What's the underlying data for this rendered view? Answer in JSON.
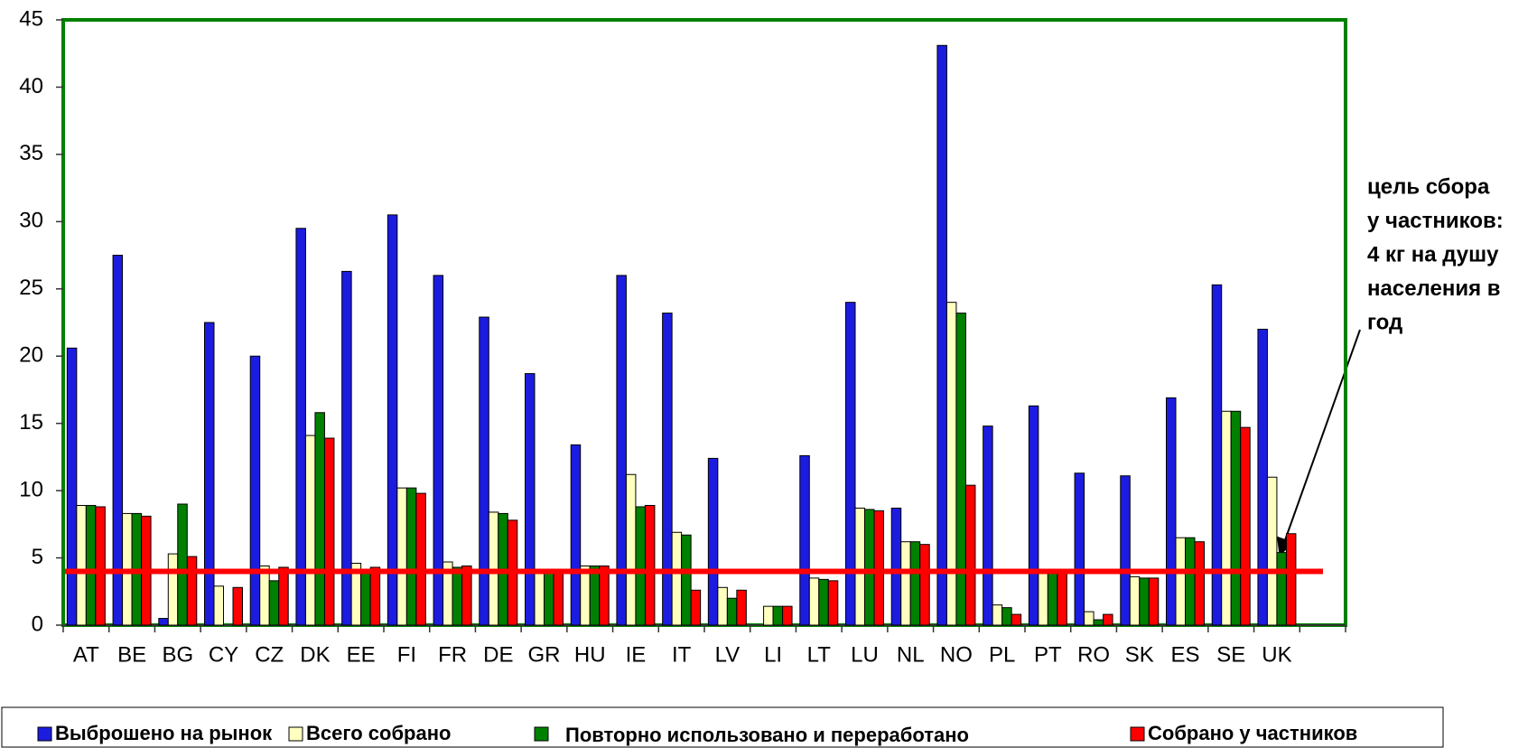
{
  "chart_data": {
    "type": "bar",
    "categories": [
      "AT",
      "BE",
      "BG",
      "CY",
      "CZ",
      "DK",
      "EE",
      "FI",
      "FR",
      "DE",
      "GR",
      "HU",
      "IE",
      "IT",
      "LV",
      "LI",
      "LT",
      "LU",
      "NL",
      "NO",
      "PL",
      "PT",
      "RO",
      "SK",
      "ES",
      "SE",
      "UK",
      null
    ],
    "series": [
      {
        "name": "Выброшено на рынок",
        "color": "#1c1ce0",
        "values": [
          20.6,
          27.5,
          0.5,
          22.5,
          20.0,
          29.5,
          26.3,
          30.5,
          26.0,
          22.9,
          18.7,
          13.4,
          26.0,
          23.2,
          12.4,
          0,
          12.6,
          24.0,
          8.7,
          43.1,
          14.8,
          16.3,
          11.3,
          11.1,
          16.9,
          25.3,
          22.0,
          null
        ]
      },
      {
        "name": "Всего собрано",
        "color": "#ffffc0",
        "values": [
          8.9,
          8.3,
          5.3,
          2.9,
          4.4,
          14.1,
          4.6,
          10.2,
          4.7,
          8.4,
          4.0,
          4.4,
          11.2,
          6.9,
          2.8,
          1.4,
          3.5,
          8.7,
          6.2,
          24.0,
          1.5,
          4.0,
          1.0,
          3.6,
          6.5,
          15.9,
          11.0,
          null
        ]
      },
      {
        "name": "Повторно использовано и переработано",
        "color": "#008000",
        "values": [
          8.9,
          8.3,
          9.0,
          0,
          3.3,
          15.8,
          4.0,
          10.2,
          4.3,
          8.3,
          4.0,
          4.4,
          8.8,
          6.7,
          2.0,
          1.4,
          3.4,
          8.6,
          6.2,
          23.2,
          1.3,
          4.0,
          0.4,
          3.5,
          6.5,
          15.9,
          5.4,
          null
        ]
      },
      {
        "name": "Собрано у частников",
        "color": "#ff0000",
        "values": [
          8.8,
          8.1,
          5.1,
          2.8,
          4.3,
          13.9,
          4.3,
          9.8,
          4.4,
          7.8,
          4.0,
          4.4,
          8.9,
          2.6,
          2.6,
          1.4,
          3.3,
          8.5,
          6.0,
          10.4,
          0.8,
          4.0,
          0.8,
          3.5,
          6.2,
          14.7,
          6.8,
          null
        ]
      }
    ],
    "target_line": {
      "value": 4,
      "color": "#ff0000"
    },
    "annotation": [
      "цель сбора",
      "у частников:",
      "4 кг на душу",
      "населения в",
      "год"
    ],
    "ylim": [
      0,
      45
    ],
    "yticks": [
      0,
      5,
      10,
      15,
      20,
      25,
      30,
      35,
      40,
      45
    ],
    "grid": false,
    "frame_color": "#008000",
    "legend": "bottom"
  }
}
